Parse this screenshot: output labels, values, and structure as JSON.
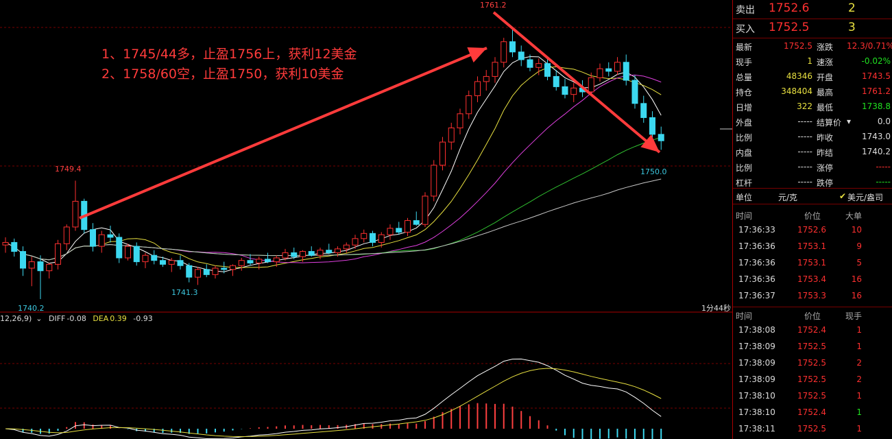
{
  "annotations": [
    "1、1745/44多，止盈1756上，获利12美金",
    "2、1758/60空，止盈1750，获利10美金"
  ],
  "price_labels": {
    "high": "1761.2",
    "left_high": "1749.4",
    "low": "1740.2",
    "mid_low": "1741.3",
    "target": "1750.0"
  },
  "macd": {
    "params": "12,26,9)",
    "diff_label": "DIFF",
    "diff_value": "-0.08",
    "dea_label": "DEA",
    "dea_value": "0.39",
    "macd_value": "-0.93"
  },
  "elapsed": "1分44秒",
  "quote": {
    "sell_label": "卖出",
    "sell_price": "1752.6",
    "sell_vol": "2",
    "buy_label": "买入",
    "buy_price": "1752.5",
    "buy_vol": "3",
    "rows": [
      {
        "l1": "最新",
        "v1": "1752.5",
        "l2": "涨跌",
        "v2": "12.3/0.71%"
      },
      {
        "l1": "现手",
        "v1": "1",
        "l2": "速涨",
        "v2": "-0.02%"
      },
      {
        "l1": "总量",
        "v1": "48346",
        "l2": "开盘",
        "v2": "1743.5"
      },
      {
        "l1": "持仓",
        "v1": "348404",
        "l2": "最高",
        "v2": "1761.2"
      },
      {
        "l1": "日增",
        "v1": "322",
        "l2": "最低",
        "v2": "1738.8"
      },
      {
        "l1": "外盘",
        "v1": "-----",
        "l2": "结算价",
        "v2": "0.0"
      },
      {
        "l1": "比例",
        "v1": "-----",
        "l2": "昨收",
        "v2": "1743.0"
      },
      {
        "l1": "内盘",
        "v1": "-----",
        "l2": "昨结",
        "v2": "1740.2"
      },
      {
        "l1": "比例",
        "v1": "-----",
        "l2": "涨停",
        "v2": "-----"
      },
      {
        "l1": "杠杆",
        "v1": "-----",
        "l2": "跌停",
        "v2": "-----"
      }
    ],
    "unit_label": "单位",
    "unit_value": "元/克",
    "unit_alt": "美元/盎司"
  },
  "trades1": {
    "headers": [
      "时间",
      "价位",
      "大单"
    ],
    "rows": [
      [
        "17:36:33",
        "1752.6",
        "10"
      ],
      [
        "17:36:36",
        "1753.1",
        "9"
      ],
      [
        "17:36:36",
        "1753.1",
        "5"
      ],
      [
        "17:36:36",
        "1753.4",
        "16"
      ],
      [
        "17:36:37",
        "1753.3",
        "16"
      ]
    ]
  },
  "trades2": {
    "headers": [
      "时间",
      "价位",
      "现手"
    ],
    "rows": [
      [
        "17:38:08",
        "1752.4",
        "1"
      ],
      [
        "17:38:09",
        "1752.5",
        "1"
      ],
      [
        "17:38:09",
        "1752.5",
        "2"
      ],
      [
        "17:38:09",
        "1752.5",
        "2"
      ],
      [
        "17:38:10",
        "1752.5",
        "1"
      ],
      [
        "17:38:10",
        "1752.4",
        "1"
      ],
      [
        "17:38:11",
        "1752.5",
        "1"
      ]
    ]
  },
  "chart_data": {
    "type": "candlestick",
    "y_high": 1761.2,
    "y_low": 1740.2,
    "ohlc": [
      [
        1744.4,
        1745.0,
        1743.8,
        1744.6
      ],
      [
        1744.6,
        1744.9,
        1743.5,
        1743.9
      ],
      [
        1743.9,
        1744.3,
        1742.0,
        1742.6
      ],
      [
        1742.6,
        1743.5,
        1741.2,
        1743.1
      ],
      [
        1743.1,
        1743.6,
        1740.2,
        1742.4
      ],
      [
        1742.4,
        1743.0,
        1741.8,
        1742.9
      ],
      [
        1742.9,
        1744.8,
        1742.5,
        1744.5
      ],
      [
        1744.5,
        1746.0,
        1744.0,
        1745.8
      ],
      [
        1745.8,
        1749.4,
        1745.5,
        1747.8
      ],
      [
        1747.8,
        1748.0,
        1745.3,
        1745.6
      ],
      [
        1745.6,
        1746.1,
        1743.9,
        1744.3
      ],
      [
        1744.3,
        1745.5,
        1743.8,
        1745.2
      ],
      [
        1745.2,
        1745.9,
        1744.6,
        1745.0
      ],
      [
        1745.0,
        1745.3,
        1743.0,
        1743.4
      ],
      [
        1743.4,
        1744.5,
        1743.2,
        1744.3
      ],
      [
        1744.3,
        1744.6,
        1742.8,
        1743.1
      ],
      [
        1743.1,
        1743.8,
        1742.6,
        1743.6
      ],
      [
        1743.6,
        1744.0,
        1742.9,
        1743.2
      ],
      [
        1743.2,
        1743.5,
        1742.7,
        1742.9
      ],
      [
        1742.9,
        1743.4,
        1742.3,
        1743.2
      ],
      [
        1743.2,
        1743.6,
        1742.5,
        1742.8
      ],
      [
        1742.8,
        1743.0,
        1741.5,
        1741.9
      ],
      [
        1741.9,
        1742.7,
        1741.3,
        1742.5
      ],
      [
        1742.5,
        1742.9,
        1741.9,
        1742.1
      ],
      [
        1742.1,
        1742.8,
        1741.8,
        1742.6
      ],
      [
        1742.6,
        1743.1,
        1742.2,
        1742.5
      ],
      [
        1742.5,
        1742.9,
        1742.0,
        1742.8
      ],
      [
        1742.8,
        1743.4,
        1742.4,
        1743.2
      ],
      [
        1743.2,
        1743.7,
        1742.8,
        1743.0
      ],
      [
        1743.0,
        1743.5,
        1742.5,
        1743.3
      ],
      [
        1743.3,
        1743.8,
        1743.0,
        1743.1
      ],
      [
        1743.1,
        1743.6,
        1742.7,
        1743.4
      ],
      [
        1743.4,
        1744.1,
        1743.2,
        1743.8
      ],
      [
        1743.8,
        1744.2,
        1743.3,
        1743.5
      ],
      [
        1743.5,
        1744.0,
        1743.1,
        1743.9
      ],
      [
        1743.9,
        1744.3,
        1743.5,
        1743.6
      ],
      [
        1743.6,
        1744.2,
        1743.3,
        1744.0
      ],
      [
        1744.0,
        1744.5,
        1743.7,
        1743.8
      ],
      [
        1743.8,
        1744.3,
        1743.5,
        1744.1
      ],
      [
        1744.1,
        1744.6,
        1743.8,
        1744.4
      ],
      [
        1744.4,
        1745.2,
        1744.1,
        1744.9
      ],
      [
        1744.9,
        1745.6,
        1744.6,
        1745.3
      ],
      [
        1745.3,
        1745.5,
        1744.3,
        1744.6
      ],
      [
        1744.6,
        1745.4,
        1744.2,
        1745.2
      ],
      [
        1745.2,
        1746.0,
        1744.8,
        1745.7
      ],
      [
        1745.7,
        1746.2,
        1745.2,
        1745.4
      ],
      [
        1745.4,
        1746.5,
        1745.1,
        1746.3
      ],
      [
        1746.3,
        1747.0,
        1745.9,
        1746.0
      ],
      [
        1746.0,
        1748.5,
        1745.8,
        1748.2
      ],
      [
        1748.2,
        1751.0,
        1747.8,
        1750.6
      ],
      [
        1750.6,
        1752.8,
        1750.2,
        1752.4
      ],
      [
        1752.4,
        1753.9,
        1751.8,
        1753.5
      ],
      [
        1753.5,
        1755.0,
        1753.0,
        1754.6
      ],
      [
        1754.6,
        1756.4,
        1754.2,
        1756.0
      ],
      [
        1756.0,
        1757.5,
        1755.5,
        1757.1
      ],
      [
        1757.1,
        1758.0,
        1756.4,
        1757.5
      ],
      [
        1757.5,
        1759.0,
        1757.0,
        1758.6
      ],
      [
        1758.6,
        1760.5,
        1758.2,
        1760.2
      ],
      [
        1760.2,
        1761.2,
        1759.0,
        1759.4
      ],
      [
        1759.4,
        1759.9,
        1758.3,
        1758.8
      ],
      [
        1758.8,
        1759.2,
        1757.9,
        1758.2
      ],
      [
        1758.2,
        1758.9,
        1757.6,
        1758.5
      ],
      [
        1758.5,
        1759.0,
        1757.2,
        1757.5
      ],
      [
        1757.5,
        1758.0,
        1756.4,
        1756.7
      ],
      [
        1756.7,
        1757.3,
        1755.8,
        1756.1
      ],
      [
        1756.1,
        1757.0,
        1755.5,
        1756.6
      ],
      [
        1756.6,
        1757.2,
        1755.9,
        1756.3
      ],
      [
        1756.3,
        1757.8,
        1756.0,
        1757.4
      ],
      [
        1757.4,
        1758.5,
        1757.1,
        1758.1
      ],
      [
        1758.1,
        1758.6,
        1757.5,
        1757.9
      ],
      [
        1757.9,
        1759.0,
        1757.6,
        1758.6
      ],
      [
        1758.6,
        1759.2,
        1756.8,
        1757.2
      ],
      [
        1757.2,
        1757.6,
        1755.0,
        1755.4
      ],
      [
        1755.4,
        1756.0,
        1753.9,
        1754.3
      ],
      [
        1754.3,
        1754.8,
        1752.6,
        1753.0
      ],
      [
        1753.0,
        1753.6,
        1751.8,
        1752.5
      ]
    ],
    "ma_periods": [
      5,
      10,
      20,
      40,
      60
    ]
  }
}
